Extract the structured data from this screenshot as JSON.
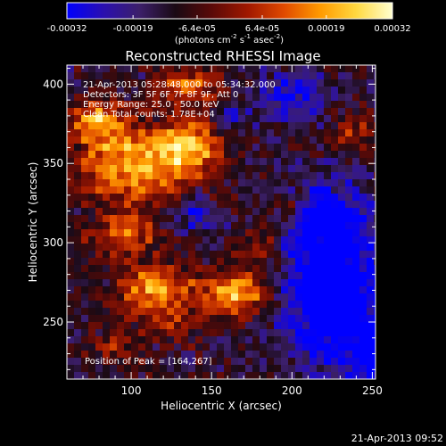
{
  "chart_data": {
    "type": "heatmap",
    "title": "Reconstructed RHESSI Image",
    "colorbar": {
      "ticks": [
        "-0.00032",
        "-0.00019",
        "-6.4e-05",
        "6.4e-05",
        "0.00019",
        "0.00032"
      ],
      "range": [
        -0.00032,
        0.00032
      ],
      "label_main": "(photons cm",
      "label_exp1": "-2",
      "label_mid": " s",
      "label_exp2": "-1",
      "label_end": " asec",
      "label_exp3": "-2",
      "label_close": ")",
      "colormap": [
        "#0000ff",
        "#2a0fb0",
        "#3c1f6a",
        "#1a0a14",
        "#5a0a08",
        "#a01800",
        "#e04a00",
        "#ff9a00",
        "#ffd840",
        "#ffffd0"
      ]
    },
    "xlabel": "Heliocentric X (arcsec)",
    "ylabel": "Heliocentric Y (arcsec)",
    "xlim": [
      60,
      252
    ],
    "ylim": [
      214,
      412
    ],
    "xticks": [
      100,
      150,
      200,
      250
    ],
    "yticks": [
      250,
      300,
      350,
      400
    ],
    "annotations": [
      "21-Apr-2013 05:28:48.000 to 05:34:32.000",
      "Detectors: 3F 5F 6F 7F 8F 9F, Att 0",
      "Energy Range: 25.0 - 50.0 keV",
      "Clean   Total counts: 1.78E+04"
    ],
    "peak_label": "Position of Peak = [164,267]",
    "peak": [
      164,
      267
    ],
    "sources": [
      {
        "x": 100,
        "y": 350,
        "sx": 22,
        "sy": 16,
        "a": 1.0
      },
      {
        "x": 138,
        "y": 360,
        "sx": 14,
        "sy": 12,
        "a": 0.9
      },
      {
        "x": 78,
        "y": 378,
        "sx": 11,
        "sy": 9,
        "a": 0.85
      },
      {
        "x": 95,
        "y": 305,
        "sx": 15,
        "sy": 10,
        "a": 0.7
      },
      {
        "x": 115,
        "y": 270,
        "sx": 17,
        "sy": 11,
        "a": 0.85
      },
      {
        "x": 165,
        "y": 268,
        "sx": 14,
        "sy": 10,
        "a": 0.95
      },
      {
        "x": 135,
        "y": 398,
        "sx": 15,
        "sy": 7,
        "a": 0.75
      },
      {
        "x": 182,
        "y": 298,
        "sx": 9,
        "sy": 8,
        "a": 0.45
      },
      {
        "x": 200,
        "y": 322,
        "sx": 8,
        "sy": 7,
        "a": 0.35
      },
      {
        "x": 238,
        "y": 372,
        "sx": 9,
        "sy": 8,
        "a": 0.45
      },
      {
        "x": 90,
        "y": 235,
        "sx": 12,
        "sy": 8,
        "a": 0.35
      },
      {
        "x": 125,
        "y": 248,
        "sx": 10,
        "sy": 8,
        "a": 0.4
      }
    ],
    "negatives": [
      {
        "x": 225,
        "y": 270,
        "sx": 22,
        "sy": 32,
        "a": 0.95
      },
      {
        "x": 220,
        "y": 318,
        "sx": 16,
        "sy": 14,
        "a": 0.55
      },
      {
        "x": 200,
        "y": 392,
        "sx": 16,
        "sy": 10,
        "a": 0.55
      },
      {
        "x": 250,
        "y": 230,
        "sx": 12,
        "sy": 14,
        "a": 0.55
      },
      {
        "x": 140,
        "y": 318,
        "sx": 8,
        "sy": 7,
        "a": 0.45
      },
      {
        "x": 160,
        "y": 378,
        "sx": 8,
        "sy": 8,
        "a": 0.35
      }
    ]
  },
  "footer_timestamp": "21-Apr-2013 09:52"
}
